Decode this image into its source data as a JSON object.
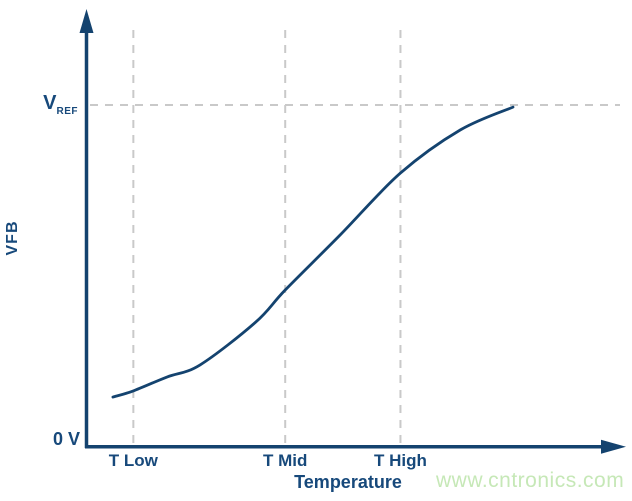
{
  "colors": {
    "line": "#14436f",
    "text": "#17497b",
    "grid": "#c9c9c9",
    "watermark": "#c6e8b7",
    "background": "#ffffff"
  },
  "watermark": {
    "text": "www.cntronics.com"
  },
  "chart_data": {
    "type": "line",
    "title": "",
    "xlabel": "Temperature",
    "ylabel": "VFB",
    "legend": "none",
    "grid": "dashed vertical lines at each x tick; dashed horizontal line at VREF",
    "x_axis": {
      "ticks": [
        {
          "label": "T Low",
          "pos": 0.087
        },
        {
          "label": "T Mid",
          "pos": 0.369
        },
        {
          "label": "T High",
          "pos": 0.583
        }
      ]
    },
    "y_axis": {
      "range": [
        "0 V",
        "VREF"
      ],
      "ticks": [
        {
          "label": "0 V",
          "pos": 0.0
        }
      ]
    },
    "reference_line": {
      "label_main": "V",
      "label_sub": "REF",
      "pos": 1.0
    },
    "series": [
      {
        "name": "VFB vs Temperature (S-curve, 0 V to VREF)",
        "points": [
          [
            0.049,
            0.146
          ],
          [
            0.087,
            0.164
          ],
          [
            0.15,
            0.205
          ],
          [
            0.211,
            0.24
          ],
          [
            0.314,
            0.365
          ],
          [
            0.369,
            0.459
          ],
          [
            0.471,
            0.62
          ],
          [
            0.583,
            0.801
          ],
          [
            0.694,
            0.927
          ],
          [
            0.792,
            0.994
          ]
        ]
      }
    ]
  }
}
